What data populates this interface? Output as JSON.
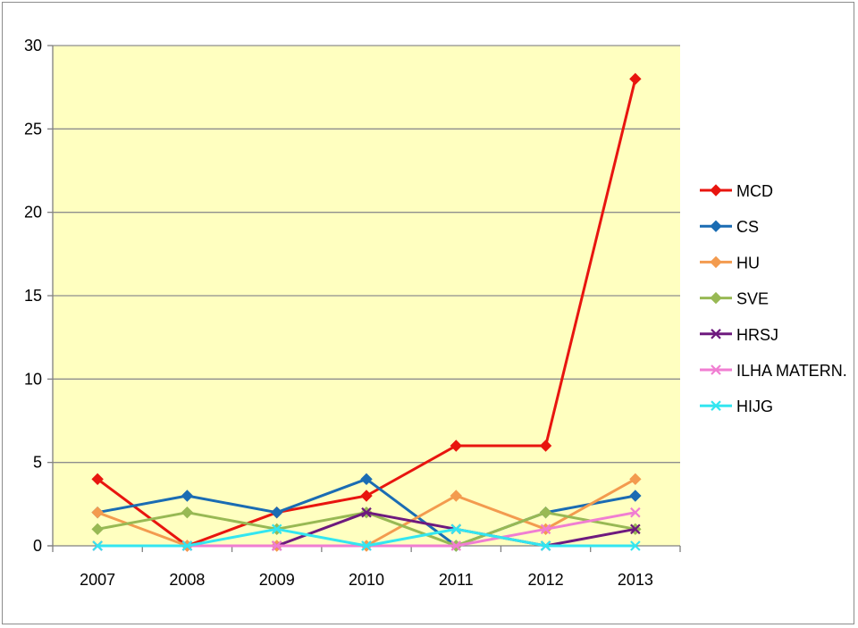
{
  "chart_data": {
    "type": "line",
    "title": "",
    "xlabel": "",
    "ylabel": "",
    "x": [
      "2007",
      "2008",
      "2009",
      "2010",
      "2011",
      "2012",
      "2013"
    ],
    "ylim": [
      0,
      30
    ],
    "yticks": [
      0,
      5,
      10,
      15,
      20,
      25,
      30
    ],
    "grid": true,
    "plot_background": "#ffffc0",
    "legend_position": "right",
    "series": [
      {
        "name": "MCD",
        "color": "#e8150f",
        "marker": "diamond",
        "values": [
          4,
          0,
          2,
          3,
          6,
          6,
          28
        ]
      },
      {
        "name": "CS",
        "color": "#1a6cb3",
        "marker": "diamond",
        "values": [
          2,
          3,
          2,
          4,
          0,
          2,
          3
        ]
      },
      {
        "name": "HU",
        "color": "#f39b4f",
        "marker": "diamond",
        "values": [
          2,
          0,
          0,
          0,
          3,
          1,
          4
        ]
      },
      {
        "name": "SVE",
        "color": "#98b954",
        "marker": "diamond",
        "values": [
          1,
          2,
          1,
          2,
          0,
          2,
          1
        ]
      },
      {
        "name": "HRSJ",
        "color": "#6e1a7e",
        "marker": "x",
        "values": [
          0,
          0,
          0,
          2,
          1,
          0,
          1
        ]
      },
      {
        "name": "ILHA MATERN.",
        "color": "#f07ed2",
        "marker": "x",
        "values": [
          0,
          0,
          0,
          0,
          0,
          1,
          2
        ]
      },
      {
        "name": "HIJG",
        "color": "#33e6f0",
        "marker": "x",
        "values": [
          0,
          0,
          1,
          0,
          1,
          0,
          0
        ]
      }
    ]
  }
}
